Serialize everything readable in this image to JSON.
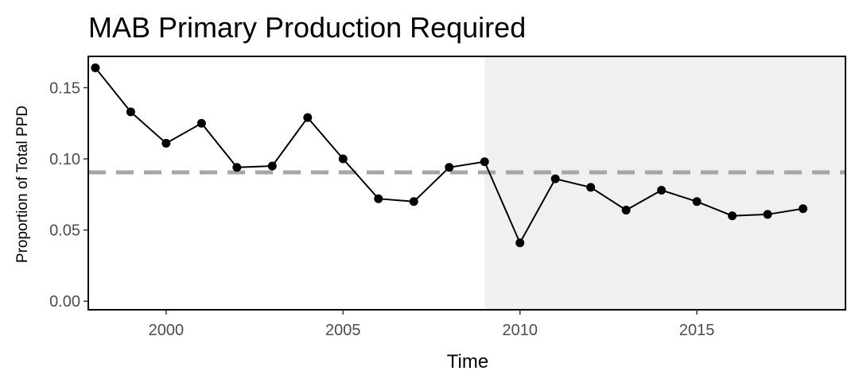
{
  "chart_data": {
    "type": "line",
    "title": "MAB Primary Production Required",
    "xlabel": "Time",
    "ylabel": "Proportion of Total PPD",
    "xlim": [
      1997.8,
      2019.2
    ],
    "ylim": [
      -0.006,
      0.172
    ],
    "x_ticks": [
      2000,
      2005,
      2010,
      2015
    ],
    "x_tick_labels": [
      "2000",
      "2005",
      "2010",
      "2015"
    ],
    "y_ticks": [
      0.0,
      0.05,
      0.1,
      0.15
    ],
    "y_tick_labels": [
      "0.00",
      "0.05",
      "0.10",
      "0.15"
    ],
    "grid": false,
    "shaded_region": {
      "x_start": 2009,
      "x_end": 2019.2,
      "color": "#f0f0f0"
    },
    "reference_line": {
      "y": 0.0905,
      "style": "dashed",
      "color": "#a6a6a6"
    },
    "series": [
      {
        "color": "#000000",
        "x": [
          1998,
          1999,
          2000,
          2001,
          2002,
          2003,
          2004,
          2005,
          2006,
          2007,
          2008,
          2009,
          2010,
          2011,
          2012,
          2013,
          2014,
          2015,
          2016,
          2017,
          2018
        ],
        "y": [
          0.164,
          0.133,
          0.111,
          0.125,
          0.094,
          0.095,
          0.129,
          0.1,
          0.072,
          0.07,
          0.094,
          0.098,
          0.041,
          0.086,
          0.08,
          0.064,
          0.078,
          0.07,
          0.06,
          0.061,
          0.065
        ]
      }
    ]
  }
}
